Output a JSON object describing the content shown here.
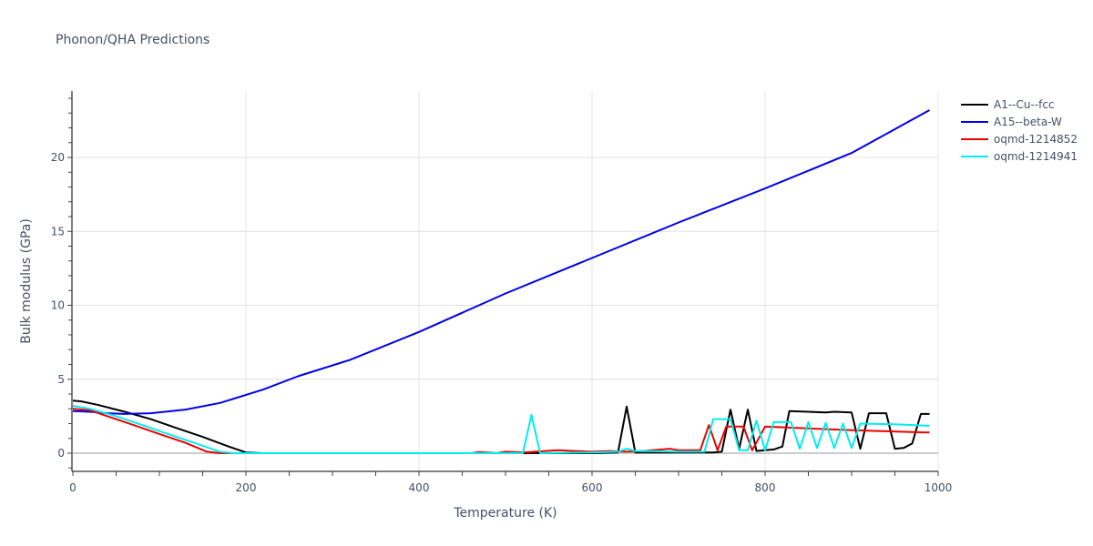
{
  "chart_data": {
    "type": "line",
    "title": "Phonon/QHA Predictions",
    "xlabel": "Temperature (K)",
    "ylabel": "Bulk modulus (GPa)",
    "xlim": [
      0,
      1000
    ],
    "ylim": [
      -1.2,
      24.5
    ],
    "x_ticks": [
      0,
      200,
      400,
      600,
      800,
      1000
    ],
    "y_ticks": [
      0,
      5,
      10,
      15,
      20
    ],
    "grid": true,
    "legend_position": "right",
    "series": [
      {
        "name": "A1--Cu--fcc",
        "color": "#000000",
        "points": [
          [
            0,
            3.55
          ],
          [
            10,
            3.5
          ],
          [
            30,
            3.25
          ],
          [
            60,
            2.8
          ],
          [
            90,
            2.3
          ],
          [
            120,
            1.7
          ],
          [
            150,
            1.1
          ],
          [
            180,
            0.45
          ],
          [
            200,
            0.05
          ],
          [
            220,
            0
          ],
          [
            400,
            0
          ],
          [
            600,
            0
          ],
          [
            630,
            0.05
          ],
          [
            640,
            3.15
          ],
          [
            650,
            0.05
          ],
          [
            700,
            0.05
          ],
          [
            740,
            0.05
          ],
          [
            750,
            0.1
          ],
          [
            760,
            2.95
          ],
          [
            770,
            0.3
          ],
          [
            780,
            2.95
          ],
          [
            790,
            0.15
          ],
          [
            800,
            0.2
          ],
          [
            810,
            0.25
          ],
          [
            820,
            0.45
          ],
          [
            828,
            2.85
          ],
          [
            850,
            2.8
          ],
          [
            870,
            2.75
          ],
          [
            880,
            2.8
          ],
          [
            900,
            2.75
          ],
          [
            910,
            0.3
          ],
          [
            920,
            2.7
          ],
          [
            940,
            2.7
          ],
          [
            950,
            0.3
          ],
          [
            960,
            0.35
          ],
          [
            970,
            0.65
          ],
          [
            980,
            2.65
          ],
          [
            990,
            2.65
          ]
        ]
      },
      {
        "name": "A15--beta-W",
        "color": "#0000ee",
        "points": [
          [
            0,
            2.85
          ],
          [
            20,
            2.8
          ],
          [
            40,
            2.7
          ],
          [
            60,
            2.65
          ],
          [
            90,
            2.7
          ],
          [
            130,
            2.95
          ],
          [
            170,
            3.4
          ],
          [
            220,
            4.3
          ],
          [
            260,
            5.2
          ],
          [
            320,
            6.3
          ],
          [
            400,
            8.2
          ],
          [
            500,
            10.8
          ],
          [
            600,
            13.2
          ],
          [
            700,
            15.6
          ],
          [
            800,
            17.9
          ],
          [
            900,
            20.3
          ],
          [
            990,
            23.2
          ]
        ]
      },
      {
        "name": "oqmd-1214852",
        "color": "#ee0000",
        "points": [
          [
            0,
            3.0
          ],
          [
            20,
            2.9
          ],
          [
            40,
            2.5
          ],
          [
            70,
            1.9
          ],
          [
            100,
            1.3
          ],
          [
            130,
            0.7
          ],
          [
            155,
            0.1
          ],
          [
            170,
            0
          ],
          [
            400,
            0
          ],
          [
            460,
            0
          ],
          [
            470,
            0.08
          ],
          [
            490,
            0
          ],
          [
            500,
            0.1
          ],
          [
            520,
            0.05
          ],
          [
            560,
            0.2
          ],
          [
            580,
            0.15
          ],
          [
            600,
            0.1
          ],
          [
            620,
            0.15
          ],
          [
            640,
            0.1
          ],
          [
            660,
            0.15
          ],
          [
            690,
            0.3
          ],
          [
            700,
            0.2
          ],
          [
            725,
            0.2
          ],
          [
            735,
            1.9
          ],
          [
            745,
            0.2
          ],
          [
            755,
            1.8
          ],
          [
            775,
            1.8
          ],
          [
            785,
            0.2
          ],
          [
            800,
            1.8
          ],
          [
            900,
            1.55
          ],
          [
            990,
            1.4
          ]
        ]
      },
      {
        "name": "oqmd-1214941",
        "color": "#00eeee",
        "points": [
          [
            0,
            3.2
          ],
          [
            20,
            3.0
          ],
          [
            50,
            2.5
          ],
          [
            80,
            1.9
          ],
          [
            110,
            1.3
          ],
          [
            140,
            0.7
          ],
          [
            170,
            0.1
          ],
          [
            185,
            0
          ],
          [
            400,
            0
          ],
          [
            520,
            0
          ],
          [
            530,
            2.6
          ],
          [
            540,
            0
          ],
          [
            600,
            0.05
          ],
          [
            630,
            0.1
          ],
          [
            640,
            0.3
          ],
          [
            650,
            0.15
          ],
          [
            700,
            0.1
          ],
          [
            730,
            0.1
          ],
          [
            740,
            2.3
          ],
          [
            760,
            2.3
          ],
          [
            770,
            0.2
          ],
          [
            780,
            0.2
          ],
          [
            790,
            2.2
          ],
          [
            800,
            0.2
          ],
          [
            810,
            2.1
          ],
          [
            830,
            2.1
          ],
          [
            840,
            0.3
          ],
          [
            850,
            2.1
          ],
          [
            860,
            0.35
          ],
          [
            870,
            2.05
          ],
          [
            880,
            0.35
          ],
          [
            890,
            2.0
          ],
          [
            900,
            0.35
          ],
          [
            910,
            2.0
          ],
          [
            950,
            1.95
          ],
          [
            990,
            1.85
          ]
        ]
      }
    ]
  },
  "legend": {
    "items": [
      {
        "label": "A1--Cu--fcc",
        "color": "#000000"
      },
      {
        "label": "A15--beta-W",
        "color": "#0000ee"
      },
      {
        "label": "oqmd-1214852",
        "color": "#ee0000"
      },
      {
        "label": "oqmd-1214941",
        "color": "#00eeee"
      }
    ]
  }
}
